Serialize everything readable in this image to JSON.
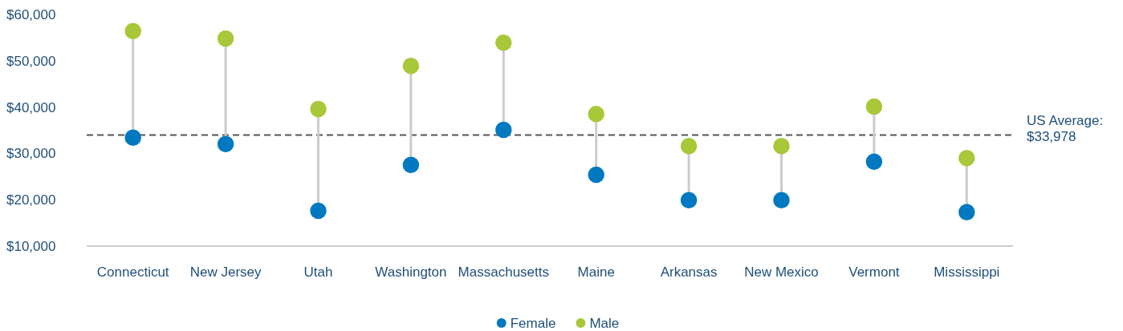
{
  "chart_data": {
    "type": "scatter",
    "categories": [
      "Connecticut",
      "New Jersey",
      "Utah",
      "Washington",
      "Massachusetts",
      "Maine",
      "Arkansas",
      "New Mexico",
      "Vermont",
      "Mississippi"
    ],
    "series": [
      {
        "name": "Female",
        "color": "#0079c1",
        "values": [
          33400,
          32000,
          17600,
          27500,
          35100,
          25400,
          19900,
          19900,
          28200,
          17300
        ]
      },
      {
        "name": "Male",
        "color": "#a8c83a",
        "values": [
          56400,
          54800,
          39600,
          48900,
          53900,
          38500,
          31600,
          31600,
          40100,
          29000
        ]
      }
    ],
    "ylim": [
      10000,
      60000
    ],
    "yticks": [
      {
        "value": 10000,
        "label": "$10,000"
      },
      {
        "value": 20000,
        "label": "$20,000"
      },
      {
        "value": 30000,
        "label": "$30,000"
      },
      {
        "value": 40000,
        "label": "$40,000"
      },
      {
        "value": 50000,
        "label": "$50,000"
      },
      {
        "value": 60000,
        "label": "$60,000"
      }
    ],
    "ref_lines": [
      {
        "axis": "y",
        "value": 33978,
        "label": "US Average:\n$33,978",
        "color": "#555555",
        "line_style": "dashed"
      }
    ],
    "marker": "circle",
    "legend": "bottom",
    "grid": false
  }
}
